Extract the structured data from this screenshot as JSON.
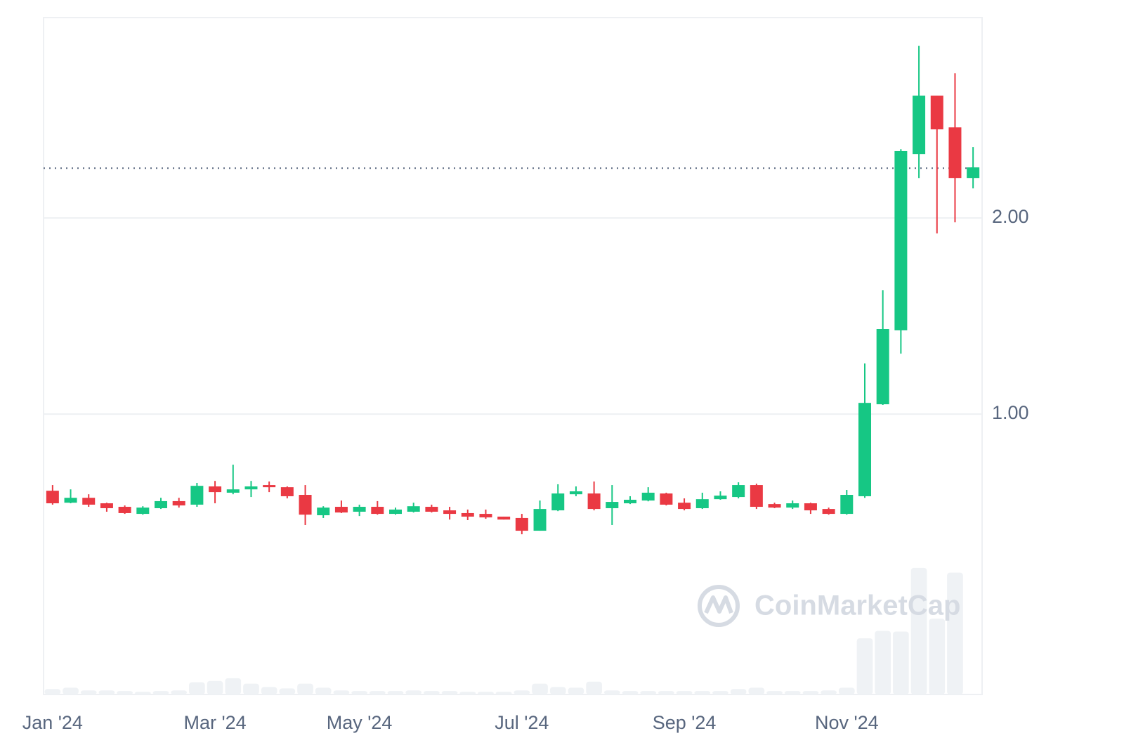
{
  "chart_data": {
    "type": "candlestick",
    "categories": [
      "Jan '24",
      null,
      null,
      null,
      null,
      null,
      null,
      null,
      null,
      "Mar '24",
      null,
      null,
      null,
      null,
      null,
      null,
      null,
      "May '24",
      null,
      null,
      null,
      null,
      null,
      null,
      null,
      null,
      "Jul '24",
      null,
      null,
      null,
      null,
      null,
      null,
      null,
      null,
      "Sep '24",
      null,
      null,
      null,
      null,
      null,
      null,
      null,
      null,
      "Nov '24",
      null,
      null,
      null,
      null,
      null,
      null,
      null
    ],
    "open": [
      0.609,
      0.548,
      0.573,
      0.545,
      0.527,
      0.491,
      0.52,
      0.556,
      0.538,
      0.631,
      0.599,
      0.616,
      0.638,
      0.627,
      0.588,
      0.484,
      0.527,
      0.502,
      0.527,
      0.491,
      0.502,
      0.527,
      0.509,
      0.495,
      0.491,
      0.477,
      0.47,
      0.405,
      0.509,
      0.591,
      0.595,
      0.52,
      0.545,
      0.559,
      0.595,
      0.548,
      0.52,
      0.566,
      0.577,
      0.638,
      0.541,
      0.523,
      0.545,
      0.516,
      0.491,
      0.581,
      1.05,
      1.427,
      2.326,
      2.624,
      2.462,
      2.204
    ],
    "high": [
      0.638,
      0.616,
      0.591,
      0.548,
      0.534,
      0.53,
      0.573,
      0.573,
      0.649,
      0.659,
      0.742,
      0.659,
      0.656,
      0.631,
      0.638,
      0.53,
      0.559,
      0.538,
      0.556,
      0.523,
      0.548,
      0.538,
      0.527,
      0.513,
      0.513,
      0.477,
      0.491,
      0.559,
      0.642,
      0.631,
      0.656,
      0.638,
      0.581,
      0.627,
      0.599,
      0.57,
      0.599,
      0.606,
      0.652,
      0.645,
      0.548,
      0.559,
      0.548,
      0.523,
      0.613,
      1.258,
      1.631,
      2.351,
      2.878,
      2.624,
      2.738,
      2.362
    ],
    "low": [
      0.538,
      0.545,
      0.527,
      0.502,
      0.491,
      0.487,
      0.516,
      0.523,
      0.527,
      0.545,
      0.591,
      0.577,
      0.602,
      0.57,
      0.434,
      0.47,
      0.495,
      0.48,
      0.487,
      0.487,
      0.498,
      0.498,
      0.462,
      0.459,
      0.466,
      0.462,
      0.387,
      0.405,
      0.505,
      0.581,
      0.509,
      0.434,
      0.541,
      0.555,
      0.534,
      0.509,
      0.516,
      0.563,
      0.57,
      0.516,
      0.52,
      0.516,
      0.491,
      0.487,
      0.487,
      0.573,
      1.047,
      1.308,
      2.204,
      1.921,
      1.978,
      2.151
    ],
    "close": [
      0.545,
      0.573,
      0.538,
      0.52,
      0.495,
      0.523,
      0.556,
      0.534,
      0.634,
      0.602,
      0.616,
      0.631,
      0.627,
      0.581,
      0.487,
      0.523,
      0.498,
      0.527,
      0.491,
      0.513,
      0.53,
      0.502,
      0.491,
      0.477,
      0.473,
      0.462,
      0.405,
      0.516,
      0.595,
      0.606,
      0.516,
      0.552,
      0.563,
      0.599,
      0.538,
      0.516,
      0.566,
      0.584,
      0.638,
      0.527,
      0.523,
      0.545,
      0.509,
      0.491,
      0.588,
      1.057,
      1.434,
      2.341,
      2.624,
      2.452,
      2.204,
      2.258
    ],
    "volume": [
      0.8,
      1.0,
      0.6,
      0.6,
      0.5,
      0.4,
      0.5,
      0.6,
      1.8,
      2.0,
      2.4,
      1.6,
      1.1,
      0.9,
      1.6,
      1.0,
      0.6,
      0.5,
      0.5,
      0.5,
      0.6,
      0.5,
      0.5,
      0.4,
      0.4,
      0.4,
      0.6,
      1.6,
      1.1,
      1.0,
      1.9,
      0.6,
      0.5,
      0.5,
      0.5,
      0.5,
      0.5,
      0.5,
      0.8,
      1.0,
      0.5,
      0.5,
      0.5,
      0.6,
      1.0,
      8.3,
      9.4,
      9.3,
      18.7,
      11.2,
      18.0,
      0
    ],
    "up_color": "#16c784",
    "down_color": "#ea3943",
    "volume_color": "#eff2f5",
    "current_price": 2.254,
    "ylim": [
      -0.43,
      3.022
    ],
    "yticks": [
      {
        "value": 1,
        "label": "1.00"
      },
      {
        "value": 2,
        "label": "2.00"
      }
    ],
    "y2lim": [
      0,
      100
    ],
    "grid": true,
    "watermark": "CoinMarketCap"
  }
}
